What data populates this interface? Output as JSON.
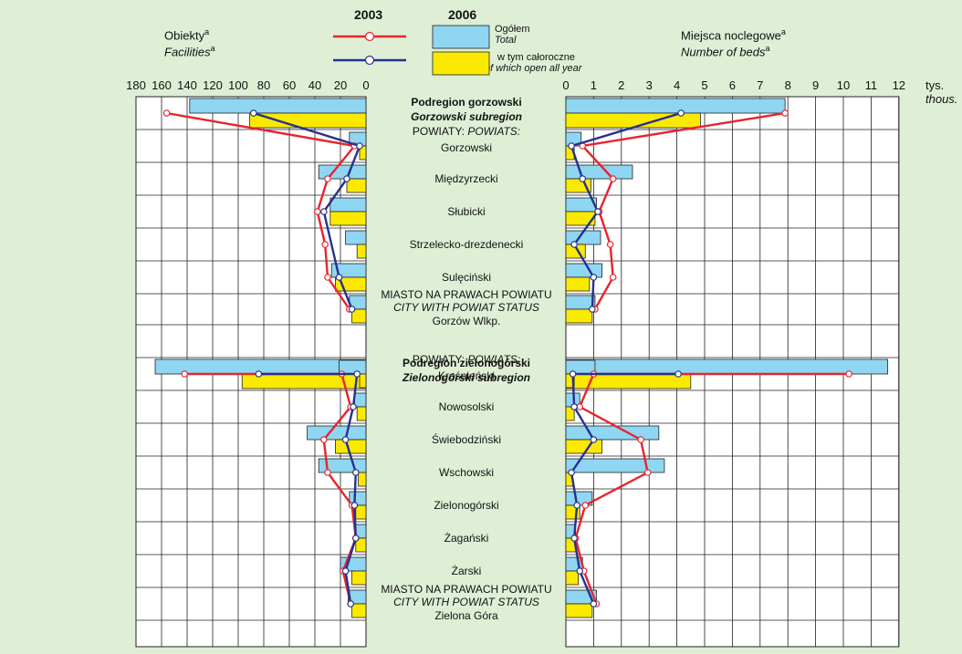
{
  "header": {
    "left_title": "Obiekty",
    "left_title_en": "Facilities",
    "right_title": "Miejsca noclegowe",
    "right_title_en": "Number of beds",
    "footnote_mark": "a",
    "year1": "2003",
    "year2": "2006",
    "legend_total": "Ogółem",
    "legend_total_en": "Total",
    "legend_allyear": "w tym całoroczne",
    "legend_allyear_en": "of which open all year",
    "unit": "tys.",
    "unit_en": "thous."
  },
  "colors": {
    "background": "#dfefd6",
    "total_bar": "#8fd6f2",
    "allyear_bar": "#fbe900",
    "line_2003": "#e8242c",
    "line_2006": "#26328c"
  },
  "chart_data": [
    {
      "type": "bar",
      "title": "Obiekty / Facilities",
      "xlim": [
        0,
        180
      ],
      "ticks": [
        "0",
        "20",
        "40",
        "60",
        "80",
        "100",
        "120",
        "140",
        "160",
        "180"
      ],
      "categories": [
        "Podregion gorzowski",
        "Gorzowski",
        "Międzyrzecki",
        "Słubicki",
        "Strzelecko-drezdenecki",
        "Sulęciński",
        "Gorzów Wlkp.",
        "Podregion zielonogórski",
        "Krośnieński",
        "Nowosolski",
        "Świebodziński",
        "Wschowski",
        "Zielonogórski",
        "Żagański",
        "Żarski",
        "Zielona Góra"
      ],
      "series": [
        {
          "name": "Ogółem / Total 2006",
          "values": [
            138,
            13,
            37,
            28,
            16,
            27,
            13,
            165,
            21,
            9,
            46,
            37,
            13,
            9,
            20,
            14
          ]
        },
        {
          "name": "w tym całoroczne / of which open all year 2006",
          "values": [
            91,
            5,
            15,
            28,
            7,
            24,
            11,
            97,
            5,
            7,
            24,
            6,
            8,
            8,
            11,
            11
          ]
        },
        {
          "name": "2003 Ogółem",
          "values": [
            156,
            9,
            30,
            38,
            32,
            30,
            0,
            142,
            19,
            12,
            33,
            30,
            11,
            8,
            18,
            12
          ]
        },
        {
          "name": "2003 w tym całoroczne",
          "values": [
            88,
            5,
            15,
            33,
            0,
            21,
            0,
            84,
            7,
            10,
            16,
            8,
            9,
            8,
            16,
            12
          ]
        }
      ]
    },
    {
      "type": "bar",
      "title": "Miejsca noclegowe / Number of beds",
      "xlabel": "tys. / thous.",
      "xlim": [
        0,
        12
      ],
      "ticks": [
        "0",
        "1",
        "2",
        "3",
        "4",
        "5",
        "6",
        "7",
        "8",
        "9",
        "10",
        "11",
        "12"
      ],
      "categories": [
        "Podregion gorzowski",
        "Gorzowski",
        "Międzyrzecki",
        "Słubicki",
        "Strzelecko-drezdenecki",
        "Sulęciński",
        "Gorzów Wlkp.",
        "Podregion zielonogórski",
        "Krośnieński",
        "Nowosolski",
        "Świebodziński",
        "Wschowski",
        "Zielonogórski",
        "Żagański",
        "Żarski",
        "Zielona Góra"
      ],
      "series": [
        {
          "name": "Ogółem / Total 2006",
          "values": [
            7.9,
            0.55,
            2.4,
            1.1,
            1.25,
            1.3,
            1.05,
            11.6,
            1.05,
            0.5,
            3.35,
            3.55,
            0.95,
            0.35,
            0.6,
            1.1
          ]
        },
        {
          "name": "w tym całoroczne / of which open all year 2006",
          "values": [
            4.85,
            0.3,
            0.9,
            1.05,
            0.7,
            0.85,
            0.95,
            4.5,
            0.3,
            0.3,
            1.3,
            0.25,
            0.5,
            0.35,
            0.45,
            0.95
          ]
        },
        {
          "name": "2003 Ogółem",
          "values": [
            7.9,
            0.6,
            1.7,
            1.2,
            1.6,
            1.7,
            0,
            10.2,
            1.0,
            0.5,
            2.7,
            2.95,
            0.7,
            0.35,
            0.65,
            1.1
          ]
        },
        {
          "name": "2003 w tym całoroczne",
          "values": [
            4.15,
            0.2,
            0.6,
            1.15,
            0.3,
            1.0,
            0,
            4.05,
            0.25,
            0.3,
            1.0,
            0.2,
            0.4,
            0.3,
            0.5,
            1.0
          ]
        }
      ]
    }
  ],
  "rows": [
    {
      "line1": "Podregion gorzowski",
      "line2": "Gorzowski subregion",
      "style": "sub"
    },
    {
      "line1": "POWIATY:   POWIATS:",
      "line2": "Gorzowski",
      "style": "pow"
    },
    {
      "line1": "Międzyrzecki",
      "style": "plain"
    },
    {
      "line1": "Słubicki",
      "style": "plain"
    },
    {
      "line1": "Strzelecko-drezdenecki",
      "style": "plain"
    },
    {
      "line1": "Sulęciński",
      "style": "plain"
    },
    {
      "line1": "MIASTO NA PRAWACH POWIATU",
      "line2": "CITY WITH POWIAT STATUS",
      "line3": "Gorzów Wlkp.",
      "style": "city"
    },
    {
      "line1": "Podregion zielonogórski",
      "line2": "Zielonogórski subregion",
      "style": "sub"
    },
    {
      "line1": "POWIATY:   POWIATS:",
      "line2": "Krośnieński",
      "style": "pow"
    },
    {
      "line1": "Nowosolski",
      "style": "plain"
    },
    {
      "line1": "Świebodziński",
      "style": "plain"
    },
    {
      "line1": "Wschowski",
      "style": "plain"
    },
    {
      "line1": "Zielonogórski",
      "style": "plain"
    },
    {
      "line1": "Żagański",
      "style": "plain"
    },
    {
      "line1": "Żarski",
      "style": "plain"
    },
    {
      "line1": "MIASTO NA PRAWACH POWIATU",
      "line2": "CITY WITH POWIAT STATUS",
      "line3": "Zielona Góra",
      "style": "city"
    }
  ]
}
